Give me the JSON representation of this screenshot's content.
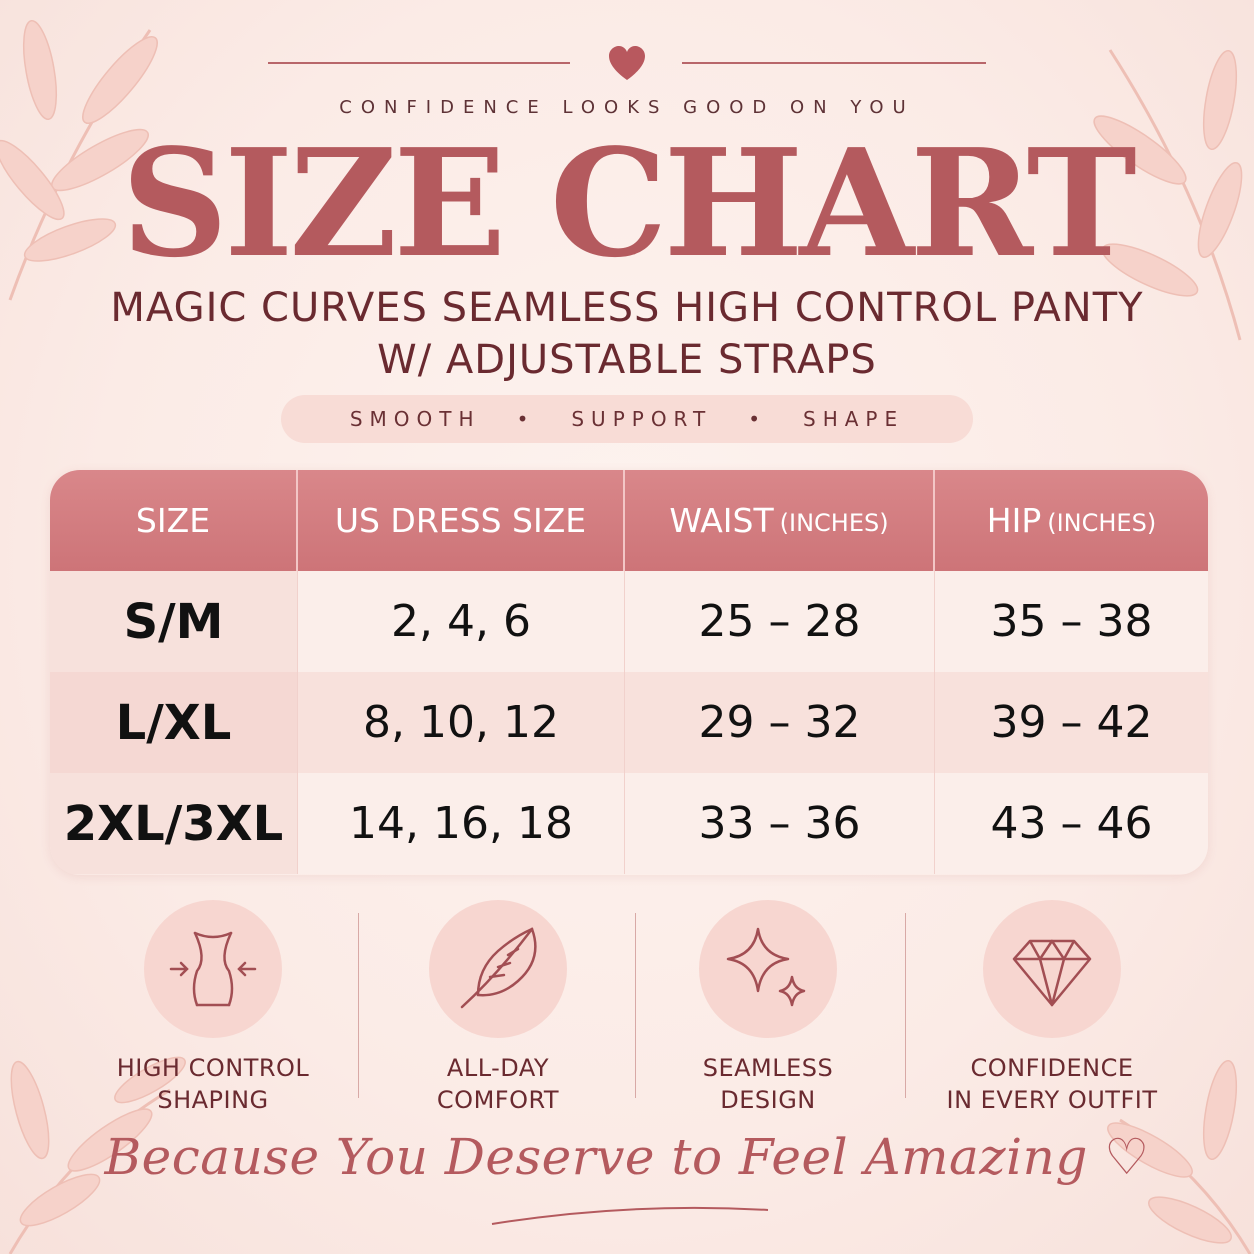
{
  "tagline": "CONFIDENCE LOOKS GOOD ON YOU",
  "title": "SIZE CHART",
  "product": {
    "line1": "MAGIC CURVES SEAMLESS HIGH CONTROL PANTY",
    "line2": "W/ ADJUSTABLE STRAPS"
  },
  "pill": {
    "items": [
      "SMOOTH",
      "SUPPORT",
      "SHAPE"
    ],
    "separator": "•"
  },
  "table": {
    "headers": [
      {
        "main": "SIZE",
        "sub": ""
      },
      {
        "main": "US DRESS SIZE",
        "sub": ""
      },
      {
        "main": "WAIST",
        "sub": "(INCHES)"
      },
      {
        "main": "HIP",
        "sub": "(INCHES)"
      }
    ],
    "rows": [
      [
        "S/M",
        "2, 4, 6",
        "25 – 28",
        "35 – 38"
      ],
      [
        "L/XL",
        "8, 10, 12",
        "29 – 32",
        "39 – 42"
      ],
      [
        "2XL/3XL",
        "14, 16, 18",
        "33 – 36",
        "43 – 46"
      ]
    ]
  },
  "features": [
    {
      "icon": "waist-shaping-icon",
      "line1": "HIGH CONTROL",
      "line2": "SHAPING"
    },
    {
      "icon": "feather-icon",
      "line1": "ALL-DAY",
      "line2": "COMFORT"
    },
    {
      "icon": "sparkle-icon",
      "line1": "SEAMLESS",
      "line2": "DESIGN"
    },
    {
      "icon": "diamond-icon",
      "line1": "CONFIDENCE",
      "line2": "IN EVERY OUTFIT"
    }
  ],
  "footer_script": "Because You Deserve to Feel Amazing ♡",
  "colors": {
    "accent": "#b45a5e",
    "header": "#cd7478",
    "background": "#fbebe6",
    "text": "#6a2a30"
  }
}
